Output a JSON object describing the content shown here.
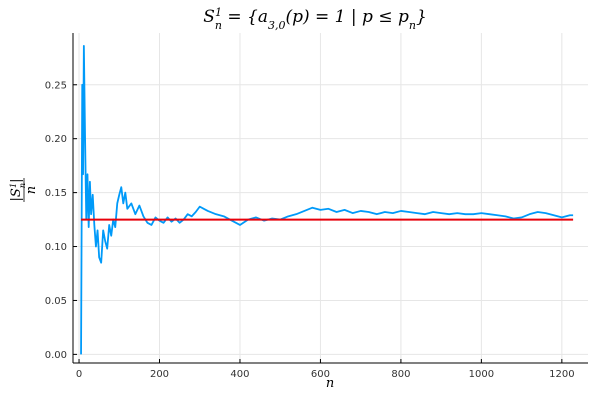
{
  "chart_data": {
    "type": "line",
    "title": "S_n^1 = {a_{3,0}(p) = 1 | p ≤ p_n}",
    "title_parts": {
      "s": "S",
      "sub": "n",
      "sup": "1",
      "rest": " = {a",
      "sub2": "3,0",
      "rest2": "(p) = 1 | p ≤ p",
      "sub3": "n",
      "close": "}"
    },
    "xlabel": "n",
    "ylabel": "|S_n^1| / n",
    "ylabel_parts": {
      "num_s": "|S",
      "num_sub": "n",
      "num_sup": "1",
      "num_close": "|",
      "den": "n"
    },
    "xlim": [
      -15,
      1265
    ],
    "ylim": [
      -0.008,
      0.298
    ],
    "x_ticks": [
      0,
      200,
      400,
      600,
      800,
      1000,
      1200
    ],
    "y_ticks": [
      0.0,
      0.05,
      0.1,
      0.15,
      0.2,
      0.25
    ],
    "y_tick_labels": [
      "0.00",
      "0.05",
      "0.10",
      "0.15",
      "0.20",
      "0.25"
    ],
    "grid": true,
    "legend": "none",
    "series": [
      {
        "color": "#009af9",
        "x": [
          5,
          8,
          10,
          12,
          15,
          18,
          21,
          24,
          27,
          30,
          34,
          38,
          42,
          46,
          50,
          55,
          60,
          65,
          70,
          75,
          80,
          85,
          90,
          95,
          100,
          105,
          110,
          115,
          120,
          130,
          140,
          150,
          160,
          170,
          180,
          190,
          200,
          210,
          220,
          230,
          240,
          250,
          260,
          270,
          280,
          290,
          300,
          310,
          320,
          340,
          360,
          380,
          400,
          420,
          440,
          460,
          480,
          500,
          520,
          540,
          560,
          580,
          600,
          620,
          640,
          660,
          680,
          700,
          720,
          740,
          760,
          780,
          800,
          820,
          840,
          860,
          880,
          900,
          920,
          940,
          960,
          980,
          1000,
          1020,
          1040,
          1060,
          1080,
          1100,
          1120,
          1140,
          1160,
          1180,
          1200,
          1220,
          1228
        ],
        "y": [
          0.0,
          0.25,
          0.167,
          0.286,
          0.2,
          0.125,
          0.167,
          0.118,
          0.16,
          0.13,
          0.148,
          0.12,
          0.1,
          0.115,
          0.09,
          0.085,
          0.115,
          0.105,
          0.098,
          0.12,
          0.11,
          0.125,
          0.118,
          0.14,
          0.148,
          0.155,
          0.14,
          0.15,
          0.135,
          0.14,
          0.13,
          0.138,
          0.128,
          0.122,
          0.12,
          0.127,
          0.124,
          0.122,
          0.127,
          0.123,
          0.126,
          0.122,
          0.125,
          0.13,
          0.128,
          0.132,
          0.137,
          0.135,
          0.133,
          0.13,
          0.128,
          0.124,
          0.12,
          0.125,
          0.127,
          0.124,
          0.126,
          0.125,
          0.128,
          0.13,
          0.133,
          0.136,
          0.134,
          0.135,
          0.132,
          0.134,
          0.131,
          0.133,
          0.132,
          0.13,
          0.132,
          0.131,
          0.133,
          0.132,
          0.131,
          0.13,
          0.132,
          0.131,
          0.13,
          0.131,
          0.13,
          0.13,
          0.131,
          0.13,
          0.129,
          0.128,
          0.126,
          0.127,
          0.13,
          0.132,
          0.131,
          0.129,
          0.127,
          0.129,
          0.129
        ]
      },
      {
        "color": "#e26f46",
        "x": [
          5,
          1228
        ],
        "y": [
          0.125,
          0.125
        ]
      }
    ]
  }
}
